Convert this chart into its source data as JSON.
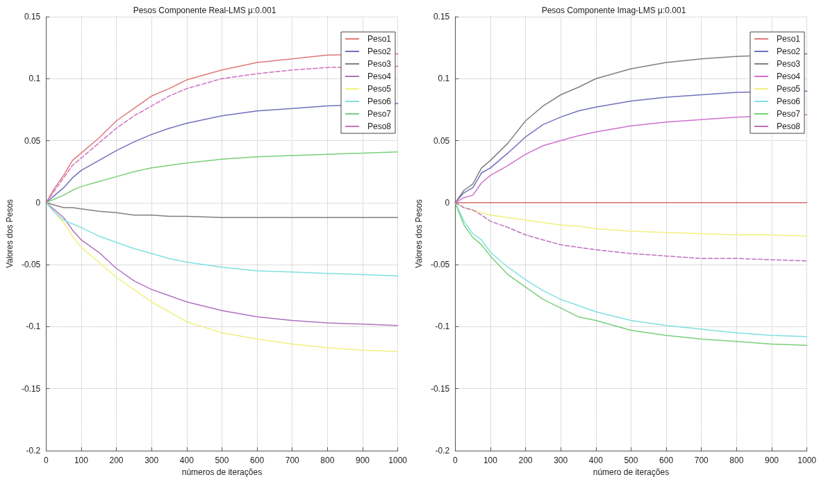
{
  "chart_data": [
    {
      "type": "line",
      "title": "Pesos Componente Real-LMS μ:0.001",
      "xlabel": "números de iterações",
      "ylabel": "Valores dos Pesos",
      "x": [
        0,
        25,
        50,
        75,
        100,
        150,
        200,
        250,
        300,
        350,
        400,
        500,
        600,
        700,
        800,
        900,
        1000
      ],
      "xlim": [
        0,
        1000
      ],
      "xticks": [
        0,
        100,
        200,
        300,
        400,
        500,
        600,
        700,
        800,
        900,
        1000
      ],
      "ylim": [
        -0.2,
        0.15
      ],
      "yticks": [
        -0.2,
        -0.15,
        -0.1,
        -0.05,
        0,
        0.05,
        0.1,
        0.15
      ],
      "grid": true,
      "legend": "top right",
      "marker": "none",
      "series": [
        {
          "name": "Peso1",
          "color": "#e07878",
          "values": [
            0,
            0.012,
            0.022,
            0.034,
            0.04,
            0.052,
            0.066,
            0.076,
            0.086,
            0.092,
            0.099,
            0.107,
            0.113,
            0.116,
            0.119,
            null,
            0.12
          ]
        },
        {
          "name": "Peso2",
          "color": "#7070c0",
          "values": [
            0,
            0.006,
            0.012,
            0.02,
            0.026,
            0.034,
            0.042,
            0.049,
            0.055,
            0.06,
            0.064,
            0.07,
            0.074,
            0.076,
            0.078,
            null,
            0.08
          ]
        },
        {
          "name": "Peso3",
          "color": "#808080",
          "values": [
            0,
            -0.002,
            -0.004,
            -0.004,
            -0.005,
            -0.007,
            -0.008,
            -0.01,
            -0.01,
            -0.011,
            -0.011,
            -0.012,
            -0.012,
            -0.012,
            -0.012,
            -0.012,
            -0.012
          ]
        },
        {
          "name": "Peso4",
          "color": "#b070c0",
          "values": [
            0,
            -0.006,
            -0.012,
            -0.022,
            -0.03,
            -0.04,
            -0.053,
            -0.063,
            -0.07,
            -0.075,
            -0.08,
            -0.087,
            -0.092,
            -0.095,
            -0.097,
            -0.098,
            -0.099
          ]
        },
        {
          "name": "Peso5",
          "color": "#f0f080",
          "values": [
            0,
            -0.008,
            -0.016,
            -0.027,
            -0.036,
            -0.048,
            -0.06,
            -0.07,
            -0.08,
            -0.088,
            -0.096,
            -0.105,
            -0.11,
            -0.114,
            -0.117,
            -0.119,
            -0.12
          ]
        },
        {
          "name": "Peso6",
          "color": "#80e0e0",
          "values": [
            0,
            -0.008,
            -0.014,
            -0.017,
            -0.02,
            -0.027,
            -0.032,
            -0.037,
            -0.041,
            -0.045,
            -0.048,
            -0.052,
            -0.055,
            -0.056,
            -0.057,
            -0.058,
            -0.059
          ]
        },
        {
          "name": "Peso7",
          "color": "#78d078",
          "values": [
            0,
            0.003,
            0.006,
            0.01,
            0.013,
            0.017,
            0.021,
            0.025,
            0.028,
            0.03,
            0.032,
            0.035,
            0.037,
            0.038,
            0.039,
            0.04,
            0.041
          ]
        },
        {
          "name": "Peso8",
          "color": "#d070c0",
          "line_style": "dashed",
          "values": [
            0,
            0.01,
            0.02,
            0.03,
            0.036,
            0.048,
            0.06,
            0.07,
            0.078,
            0.086,
            0.092,
            0.1,
            0.104,
            0.107,
            0.109,
            null,
            0.11
          ]
        }
      ]
    },
    {
      "type": "line",
      "title": "Pesos Componente Imag-LMS μ:0.001",
      "xlabel": "número de iterações",
      "ylabel": "Valores dos Pesos",
      "x": [
        0,
        25,
        50,
        75,
        100,
        150,
        200,
        250,
        300,
        350,
        400,
        500,
        600,
        700,
        800,
        900,
        1000
      ],
      "xlim": [
        0,
        1000
      ],
      "xticks": [
        0,
        100,
        200,
        300,
        400,
        500,
        600,
        700,
        800,
        900,
        1000
      ],
      "ylim": [
        -0.2,
        0.15
      ],
      "yticks": [
        -0.2,
        -0.15,
        -0.1,
        -0.05,
        0,
        0.05,
        0.1,
        0.15
      ],
      "grid": true,
      "legend": "top right",
      "marker": "none",
      "series": [
        {
          "name": "Peso1",
          "color": "#e07878",
          "values": [
            0,
            0,
            0,
            0,
            0,
            0,
            0,
            0,
            0,
            0,
            0,
            0,
            0,
            0,
            0,
            0,
            0
          ]
        },
        {
          "name": "Peso2",
          "color": "#7070c0",
          "values": [
            0,
            0.008,
            0.012,
            0.024,
            0.028,
            0.04,
            0.053,
            0.063,
            0.069,
            0.074,
            0.077,
            0.082,
            0.085,
            0.087,
            0.089,
            null,
            0.09
          ]
        },
        {
          "name": "Peso3",
          "color": "#808080",
          "values": [
            0,
            0.01,
            0.015,
            0.028,
            0.034,
            0.048,
            0.066,
            0.078,
            0.087,
            0.093,
            0.1,
            0.108,
            0.113,
            0.116,
            0.118,
            null,
            0.12
          ]
        },
        {
          "name": "Peso4",
          "color": "#d070d0",
          "values": [
            0,
            0.004,
            0.006,
            0.016,
            0.022,
            0.03,
            0.039,
            0.046,
            0.05,
            0.054,
            0.057,
            0.062,
            0.065,
            0.067,
            0.069,
            null,
            0.071
          ]
        },
        {
          "name": "Peso5",
          "color": "#f0f080",
          "values": [
            0,
            -0.004,
            -0.006,
            -0.008,
            -0.01,
            -0.012,
            -0.014,
            -0.016,
            -0.018,
            -0.019,
            -0.021,
            -0.023,
            -0.024,
            -0.025,
            -0.026,
            -0.026,
            -0.027
          ]
        },
        {
          "name": "Peso6",
          "color": "#80e0e0",
          "values": [
            0,
            -0.015,
            -0.025,
            -0.03,
            -0.04,
            -0.052,
            -0.062,
            -0.071,
            -0.078,
            -0.083,
            -0.088,
            -0.095,
            -0.099,
            -0.102,
            -0.105,
            -0.107,
            -0.108
          ]
        },
        {
          "name": "Peso7",
          "color": "#78d078",
          "values": [
            0,
            -0.018,
            -0.028,
            -0.034,
            -0.043,
            -0.058,
            -0.068,
            -0.078,
            -0.085,
            -0.092,
            -0.095,
            -0.103,
            -0.107,
            -0.11,
            -0.112,
            -0.114,
            -0.115
          ]
        },
        {
          "name": "Peso8",
          "color": "#c070c0",
          "line_style": "dashed",
          "values": [
            0,
            -0.004,
            -0.006,
            -0.01,
            -0.015,
            -0.02,
            -0.026,
            -0.03,
            -0.034,
            -0.036,
            -0.038,
            -0.041,
            -0.043,
            -0.045,
            -0.045,
            -0.046,
            -0.047
          ]
        }
      ]
    }
  ]
}
